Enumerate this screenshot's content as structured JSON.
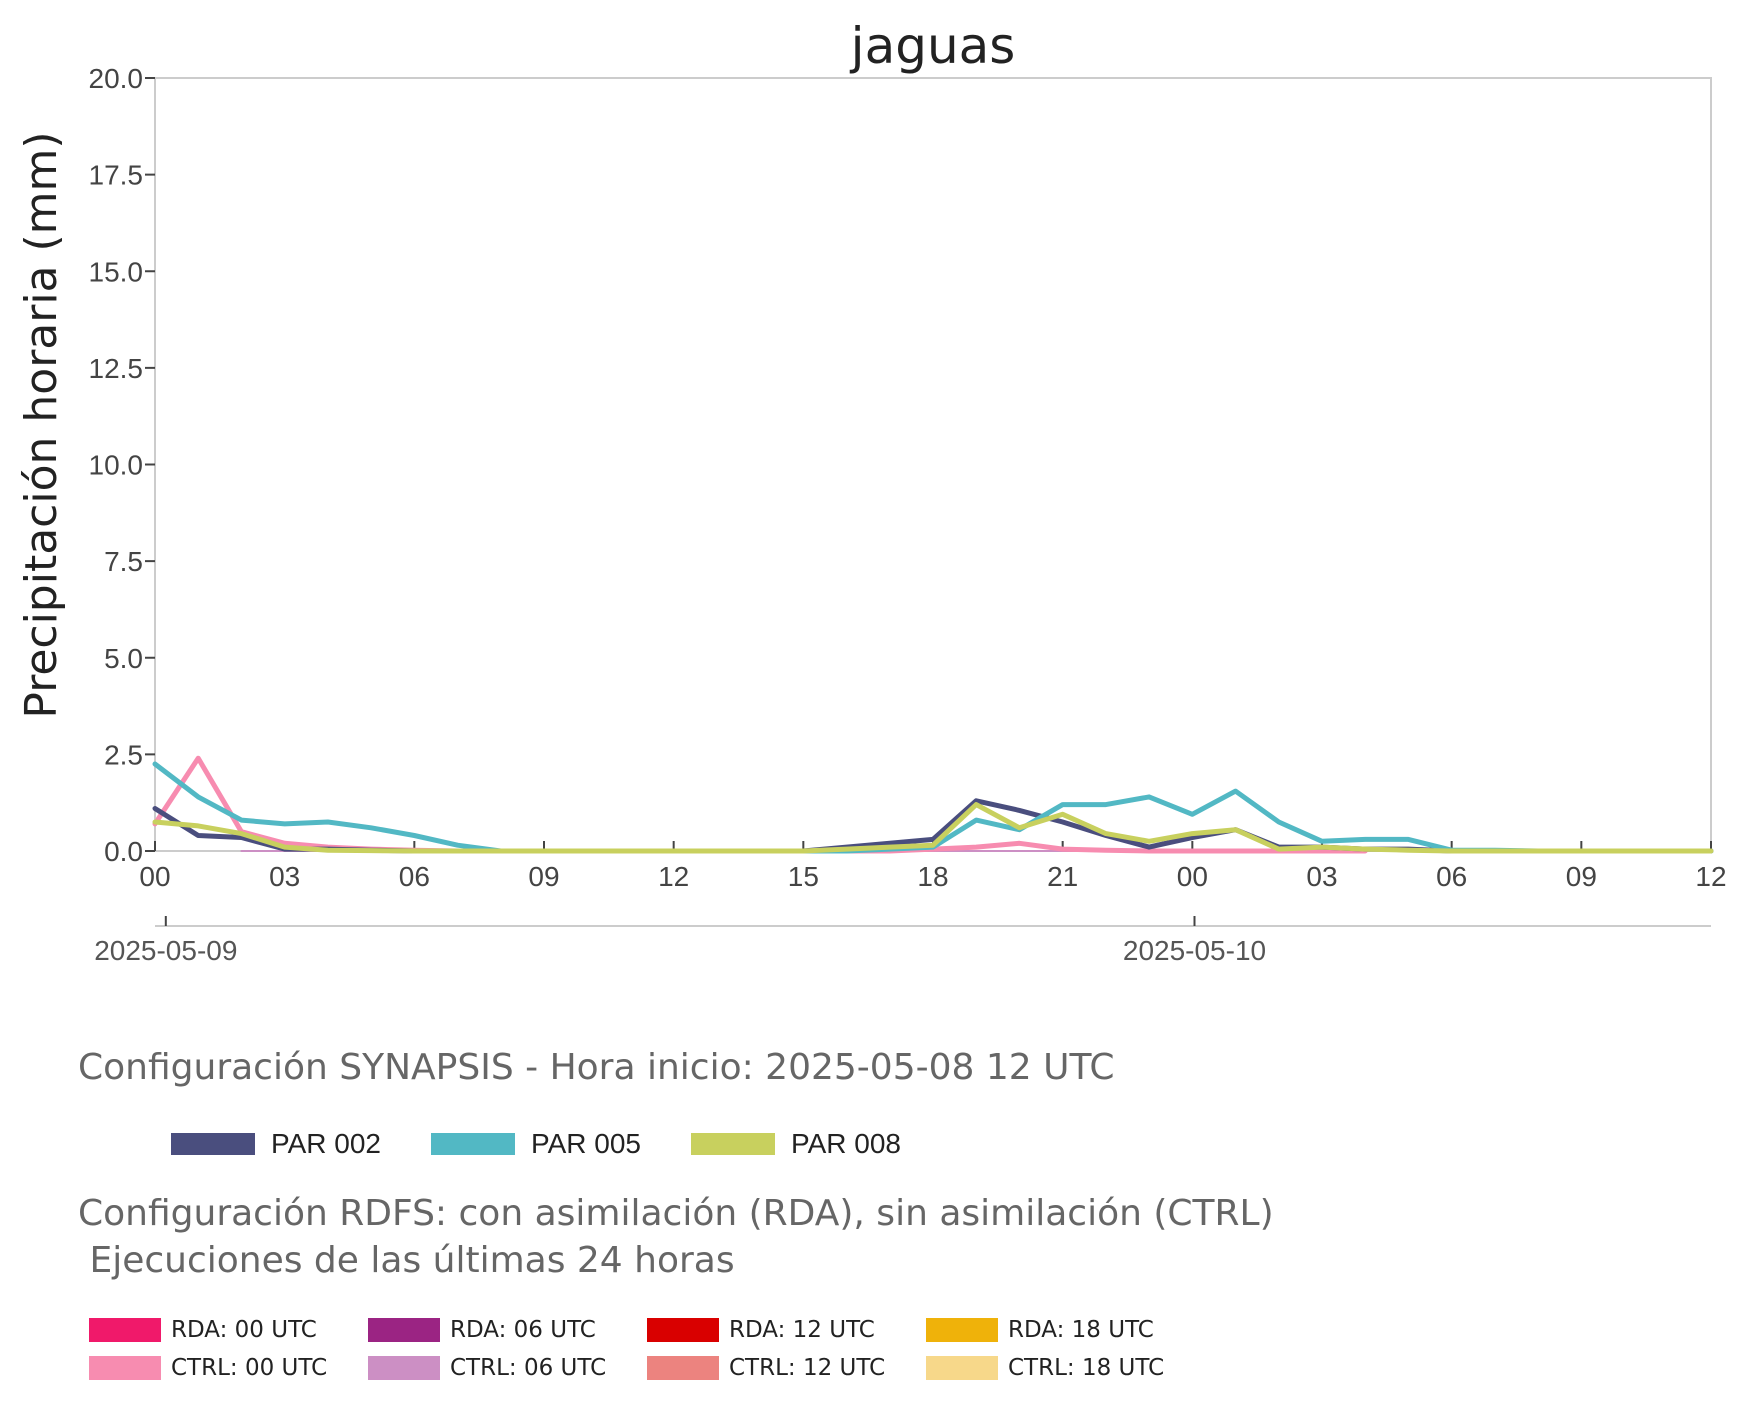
{
  "chart_data": {
    "type": "line",
    "title": "jaguas",
    "ylabel": "Precipitación horaria (mm)",
    "xlabel": "",
    "ylim": [
      0,
      20
    ],
    "yticks": [
      "0.0",
      "2.5",
      "5.0",
      "7.5",
      "10.0",
      "12.5",
      "15.0",
      "17.5",
      "20.0"
    ],
    "x_hours": [
      0,
      36
    ],
    "xticks": [
      "00",
      "03",
      "06",
      "09",
      "12",
      "15",
      "18",
      "21",
      "00",
      "03",
      "06",
      "09",
      "12"
    ],
    "date_ticks": [
      {
        "label": "2025-05-09",
        "hour": 0.25
      },
      {
        "label": "2025-05-10",
        "hour": 24.05
      }
    ],
    "grid": false,
    "series": [
      {
        "name": "PAR 002",
        "color": "#4a4e7e",
        "x": [
          0,
          1,
          2,
          3,
          4,
          5,
          6,
          7,
          8,
          9,
          10,
          11,
          12,
          13,
          14,
          15,
          16,
          17,
          18,
          19,
          20,
          21,
          22,
          23,
          24,
          25,
          26,
          27,
          28,
          29,
          30,
          31,
          32,
          33,
          34,
          35,
          36
        ],
        "y": [
          1.1,
          0.4,
          0.35,
          0.05,
          0.05,
          0.02,
          0,
          0,
          0,
          0,
          0,
          0,
          0,
          0,
          0,
          0,
          0.1,
          0.2,
          0.3,
          1.3,
          1.05,
          0.75,
          0.4,
          0.1,
          0.35,
          0.55,
          0.1,
          0.1,
          0.05,
          0.05,
          0,
          0,
          0,
          0,
          0,
          0,
          0
        ]
      },
      {
        "name": "PAR 005",
        "color": "#52b8c4",
        "x": [
          0,
          1,
          2,
          3,
          4,
          5,
          6,
          7,
          8,
          9,
          10,
          11,
          12,
          13,
          14,
          15,
          16,
          17,
          18,
          19,
          20,
          21,
          22,
          23,
          24,
          25,
          26,
          27,
          28,
          29,
          30,
          31,
          32,
          33,
          34,
          35,
          36
        ],
        "y": [
          2.25,
          1.4,
          0.8,
          0.7,
          0.75,
          0.6,
          0.4,
          0.15,
          0,
          0,
          0,
          0,
          0,
          0,
          0,
          0,
          0,
          0.05,
          0.1,
          0.8,
          0.55,
          1.2,
          1.2,
          1.4,
          0.95,
          1.55,
          0.75,
          0.25,
          0.3,
          0.3,
          0.02,
          0.02,
          0,
          0,
          0,
          0,
          0
        ]
      },
      {
        "name": "PAR 008",
        "color": "#c8d05e",
        "x": [
          0,
          1,
          2,
          3,
          4,
          5,
          6,
          7,
          8,
          9,
          10,
          11,
          12,
          13,
          14,
          15,
          16,
          17,
          18,
          19,
          20,
          21,
          22,
          23,
          24,
          25,
          26,
          27,
          28,
          29,
          30,
          31,
          32,
          33,
          34,
          35,
          36
        ],
        "y": [
          0.75,
          0.65,
          0.45,
          0.1,
          0.02,
          0.01,
          0,
          0,
          0,
          0,
          0,
          0,
          0,
          0,
          0,
          0,
          0.05,
          0.1,
          0.15,
          1.2,
          0.6,
          0.95,
          0.45,
          0.25,
          0.45,
          0.55,
          0.05,
          0.1,
          0.05,
          0.02,
          0,
          0,
          0,
          0,
          0,
          0,
          0
        ]
      },
      {
        "name": "CTRL: 00 UTC",
        "color": "#f78cb0",
        "x": [
          0,
          1,
          2,
          3,
          4,
          5,
          6,
          7,
          8,
          9,
          10,
          11,
          12,
          13,
          14,
          15,
          16,
          17,
          18,
          19,
          20,
          21,
          22,
          23,
          24,
          25,
          26,
          27,
          28
        ],
        "y": [
          0.7,
          2.4,
          0.5,
          0.2,
          0.1,
          0.05,
          0.02,
          0,
          0,
          0,
          0,
          0,
          0,
          0,
          0,
          0,
          0,
          0,
          0.05,
          0.1,
          0.2,
          0.05,
          0.02,
          0,
          0,
          0,
          0,
          0,
          0
        ]
      },
      {
        "name": "CTRL: 06 UTC",
        "color": "#cc8fc4",
        "x": [
          2,
          28
        ],
        "y": [
          0,
          0
        ]
      }
    ]
  },
  "synapsis": {
    "heading": "Configuración SYNAPSIS - Hora inicio: 2025-05-08 12 UTC",
    "items": [
      {
        "label": "PAR 002",
        "color": "#4a4e7e"
      },
      {
        "label": "PAR 005",
        "color": "#52b8c4"
      },
      {
        "label": "PAR 008",
        "color": "#c8d05e"
      }
    ]
  },
  "rdfs": {
    "heading_line1": "Configuración RDFS: con asimilación (RDA), sin asimilación (CTRL)",
    "heading_line2": " Ejecuciones de las últimas 24 horas",
    "items": [
      {
        "label": "RDA: 00 UTC",
        "color": "#f0196a"
      },
      {
        "label": "RDA: 06 UTC",
        "color": "#9b2483"
      },
      {
        "label": "RDA: 12 UTC",
        "color": "#d90000"
      },
      {
        "label": "RDA: 18 UTC",
        "color": "#efb20a"
      },
      {
        "label": "CTRL: 00 UTC",
        "color": "#f78cb0"
      },
      {
        "label": "CTRL: 06 UTC",
        "color": "#cc8fc4"
      },
      {
        "label": "CTRL: 12 UTC",
        "color": "#ec837f"
      },
      {
        "label": "CTRL: 18 UTC",
        "color": "#f7d88a"
      }
    ]
  }
}
